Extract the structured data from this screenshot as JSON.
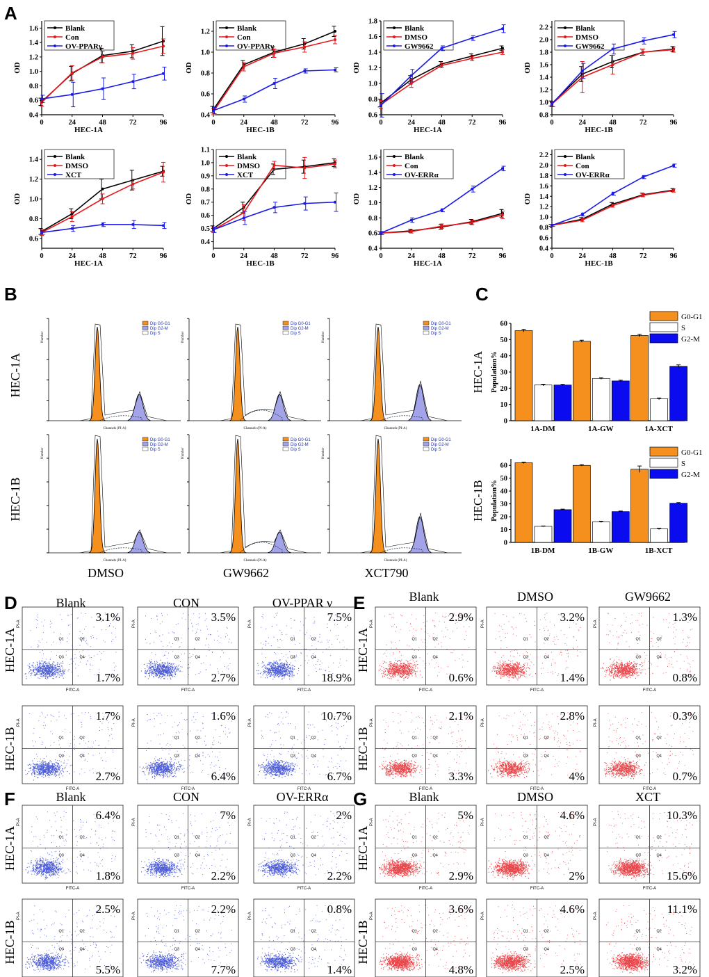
{
  "panel_labels": {
    "A": "A",
    "B": "B",
    "C": "C",
    "D": "D",
    "E": "E",
    "F": "F",
    "G": "G"
  },
  "colors": {
    "black": "#000000",
    "red": "#e8161b",
    "blue": "#1a1ae6",
    "orange": "#f5901e",
    "lilac": "#a3a3ea",
    "bar_blue": "#0b0bf0",
    "dot_blue": "#2d3fcf",
    "dot_red": "#e4262a"
  },
  "chart_data": [
    {
      "id": "a1",
      "type": "line",
      "ylabel": "OD",
      "xlabel": "HEC-1A",
      "x": [
        0,
        24,
        48,
        72,
        96
      ],
      "ylim": [
        0.4,
        1.7
      ],
      "yticks": [
        "0.4",
        "0.6",
        "0.8",
        "1.0",
        "1.2",
        "1.4",
        "1.6"
      ],
      "series": [
        {
          "name": "Blank",
          "color": "black",
          "values": [
            0.58,
            0.97,
            1.22,
            1.28,
            1.42
          ],
          "err": [
            0.05,
            0.1,
            0.1,
            0.09,
            0.2
          ]
        },
        {
          "name": "Con",
          "color": "red",
          "values": [
            0.57,
            0.98,
            1.2,
            1.25,
            1.35
          ],
          "err": [
            0.05,
            0.1,
            0.08,
            0.08,
            0.1
          ]
        },
        {
          "name": "OV-PPARγ",
          "color": "blue",
          "values": [
            0.62,
            0.68,
            0.76,
            0.86,
            0.97
          ],
          "err": [
            0.05,
            0.17,
            0.15,
            0.1,
            0.09
          ]
        }
      ]
    },
    {
      "id": "a2",
      "type": "line",
      "ylabel": "OD",
      "xlabel": "HEC-1B",
      "x": [
        0,
        24,
        48,
        72,
        96
      ],
      "ylim": [
        0.4,
        1.3
      ],
      "yticks": [
        "0.4",
        "0.6",
        "0.8",
        "1.0",
        "1.2"
      ],
      "series": [
        {
          "name": "Blank",
          "color": "black",
          "values": [
            0.45,
            0.88,
            1.0,
            1.08,
            1.2
          ],
          "err": [
            0.03,
            0.04,
            0.05,
            0.05,
            0.05
          ]
        },
        {
          "name": "Con",
          "color": "red",
          "values": [
            0.43,
            0.86,
            0.99,
            1.05,
            1.12
          ],
          "err": [
            0.03,
            0.04,
            0.04,
            0.05,
            0.04
          ]
        },
        {
          "name": "OV-PPARγ",
          "color": "blue",
          "values": [
            0.44,
            0.55,
            0.7,
            0.82,
            0.83
          ],
          "err": [
            0.03,
            0.03,
            0.05,
            0.02,
            0.02
          ]
        }
      ]
    },
    {
      "id": "a3",
      "type": "line",
      "ylabel": "OD",
      "xlabel": "HEC-1A",
      "x": [
        0,
        24,
        48,
        72,
        96
      ],
      "ylim": [
        0.6,
        1.8
      ],
      "yticks": [
        "0.6",
        "0.8",
        "1.0",
        "1.2",
        "1.4",
        "1.6",
        "1.8"
      ],
      "series": [
        {
          "name": "Blank",
          "color": "black",
          "values": [
            0.75,
            1.05,
            1.25,
            1.35,
            1.45
          ],
          "err": [
            0.05,
            0.05,
            0.03,
            0.03,
            0.03
          ]
        },
        {
          "name": "DMSO",
          "color": "red",
          "values": [
            0.73,
            1.0,
            1.23,
            1.32,
            1.4
          ],
          "err": [
            0.05,
            0.05,
            0.03,
            0.03,
            0.03
          ]
        },
        {
          "name": "GW9662",
          "color": "blue",
          "values": [
            0.72,
            1.1,
            1.45,
            1.58,
            1.7
          ],
          "err": [
            0.15,
            0.08,
            0.03,
            0.03,
            0.05
          ]
        }
      ]
    },
    {
      "id": "a4",
      "type": "line",
      "ylabel": "OD",
      "xlabel": "HEC-1B",
      "x": [
        0,
        24,
        48,
        72,
        96
      ],
      "ylim": [
        0.8,
        2.3
      ],
      "yticks": [
        "0.8",
        "1.0",
        "1.2",
        "1.4",
        "1.6",
        "1.8",
        "2.0",
        "2.2"
      ],
      "series": [
        {
          "name": "Blank",
          "color": "black",
          "values": [
            0.98,
            1.45,
            1.65,
            1.8,
            1.85
          ],
          "err": [
            0.04,
            0.12,
            0.1,
            0.05,
            0.04
          ]
        },
        {
          "name": "DMSO",
          "color": "red",
          "values": [
            0.97,
            1.4,
            1.6,
            1.8,
            1.84
          ],
          "err": [
            0.04,
            0.25,
            0.15,
            0.05,
            0.04
          ]
        },
        {
          "name": "GW9662",
          "color": "blue",
          "values": [
            0.97,
            1.5,
            1.85,
            1.98,
            2.08
          ],
          "err": [
            0.04,
            0.12,
            0.08,
            0.05,
            0.05
          ]
        }
      ]
    },
    {
      "id": "a5",
      "type": "line",
      "ylabel": "OD",
      "xlabel": "HEC-1A",
      "x": [
        0,
        24,
        48,
        72,
        96
      ],
      "ylim": [
        0.5,
        1.5
      ],
      "yticks": [
        "0.6",
        "0.8",
        "1.0",
        "1.2",
        "1.4"
      ],
      "series": [
        {
          "name": "Blank",
          "color": "black",
          "values": [
            0.67,
            0.85,
            1.1,
            1.19,
            1.28
          ],
          "err": [
            0.03,
            0.05,
            0.1,
            0.1,
            0.05
          ]
        },
        {
          "name": "DMSO",
          "color": "red",
          "values": [
            0.66,
            0.82,
            1.0,
            1.15,
            1.27
          ],
          "err": [
            0.03,
            0.05,
            0.05,
            0.05,
            0.1
          ]
        },
        {
          "name": "XCT",
          "color": "blue",
          "values": [
            0.66,
            0.7,
            0.74,
            0.74,
            0.73
          ],
          "err": [
            0.02,
            0.03,
            0.02,
            0.04,
            0.03
          ]
        }
      ]
    },
    {
      "id": "a6",
      "type": "line",
      "ylabel": "OD",
      "xlabel": "HEC-1B",
      "x": [
        0,
        24,
        48,
        72,
        96
      ],
      "ylim": [
        0.35,
        1.1
      ],
      "yticks": [
        "0.4",
        "0.5",
        "0.6",
        "0.7",
        "0.8",
        "0.9",
        "1.0",
        "1.1"
      ],
      "series": [
        {
          "name": "Blank",
          "color": "black",
          "values": [
            0.5,
            0.66,
            0.95,
            0.97,
            1.0
          ],
          "err": [
            0.02,
            0.04,
            0.04,
            0.05,
            0.03
          ]
        },
        {
          "name": "DMSO",
          "color": "red",
          "values": [
            0.49,
            0.62,
            0.98,
            0.96,
            0.99
          ],
          "err": [
            0.02,
            0.06,
            0.03,
            0.08,
            0.03
          ]
        },
        {
          "name": "XCT",
          "color": "blue",
          "values": [
            0.49,
            0.58,
            0.66,
            0.69,
            0.7
          ],
          "err": [
            0.02,
            0.05,
            0.04,
            0.05,
            0.07
          ]
        }
      ]
    },
    {
      "id": "a7",
      "type": "line",
      "ylabel": "OD",
      "xlabel": "HEC-1A",
      "x": [
        0,
        24,
        48,
        72,
        96
      ],
      "ylim": [
        0.4,
        1.7
      ],
      "yticks": [
        "0.4",
        "0.6",
        "0.8",
        "1.0",
        "1.2",
        "1.4",
        "1.6"
      ],
      "series": [
        {
          "name": "Blank",
          "color": "black",
          "values": [
            0.6,
            0.63,
            0.68,
            0.75,
            0.86
          ],
          "err": [
            0.02,
            0.02,
            0.03,
            0.03,
            0.05
          ]
        },
        {
          "name": "Con",
          "color": "red",
          "values": [
            0.6,
            0.62,
            0.69,
            0.74,
            0.84
          ],
          "err": [
            0.02,
            0.02,
            0.03,
            0.03,
            0.05
          ]
        },
        {
          "name": "OV-ERRα",
          "color": "blue",
          "values": [
            0.6,
            0.77,
            0.9,
            1.18,
            1.45
          ],
          "err": [
            0.02,
            0.03,
            0.02,
            0.04,
            0.03
          ]
        }
      ]
    },
    {
      "id": "a8",
      "type": "line",
      "ylabel": "OD",
      "xlabel": "HEC-1B",
      "x": [
        0,
        24,
        48,
        72,
        96
      ],
      "ylim": [
        0.4,
        2.3
      ],
      "yticks": [
        "0.4",
        "0.6",
        "0.8",
        "1.0",
        "1.2",
        "1.4",
        "1.6",
        "1.8",
        "2.0",
        "2.2"
      ],
      "series": [
        {
          "name": "Blank",
          "color": "black",
          "values": [
            0.84,
            0.96,
            1.25,
            1.43,
            1.52
          ],
          "err": [
            0.02,
            0.03,
            0.03,
            0.03,
            0.03
          ]
        },
        {
          "name": "Con",
          "color": "red",
          "values": [
            0.84,
            0.94,
            1.22,
            1.42,
            1.51
          ],
          "err": [
            0.02,
            0.03,
            0.03,
            0.03,
            0.03
          ]
        },
        {
          "name": "OV-ERRα",
          "color": "blue",
          "values": [
            0.84,
            1.05,
            1.45,
            1.77,
            1.99
          ],
          "err": [
            0.02,
            0.03,
            0.03,
            0.03,
            0.03
          ]
        }
      ]
    },
    {
      "id": "c1",
      "type": "bar",
      "ylabel": "Population%",
      "rowlabel": "HEC-1A",
      "ylim": [
        0,
        60
      ],
      "yticks": [
        "0",
        "10",
        "20",
        "30",
        "40",
        "50",
        "60"
      ],
      "categories": [
        "1A-DM",
        "1A-GW",
        "1A-XCT"
      ],
      "series": [
        {
          "name": "G0-G1",
          "values": [
            55.5,
            49,
            52.5
          ],
          "err": [
            0.8,
            0.6,
            0.8
          ]
        },
        {
          "name": "S",
          "values": [
            22,
            26,
            13.5
          ],
          "err": [
            0.5,
            0.5,
            0.5
          ]
        },
        {
          "name": "G2-M",
          "values": [
            22,
            24.5,
            33.5
          ],
          "err": [
            0.4,
            0.5,
            0.9
          ]
        }
      ]
    },
    {
      "id": "c2",
      "type": "bar",
      "ylabel": "Population%",
      "rowlabel": "HEC-1B",
      "ylim": [
        0,
        65
      ],
      "yticks": [
        "0",
        "10",
        "20",
        "30",
        "40",
        "50",
        "60"
      ],
      "categories": [
        "1B-DM",
        "1B-GW",
        "1B-XCT"
      ],
      "series": [
        {
          "name": "G0-G1",
          "values": [
            62,
            60,
            57
          ],
          "err": [
            0.5,
            0.5,
            2.5
          ]
        },
        {
          "name": "S",
          "values": [
            12.5,
            16,
            10.5
          ],
          "err": [
            0.3,
            0.5,
            0.5
          ]
        },
        {
          "name": "G2-M",
          "values": [
            25.5,
            24,
            30.5
          ],
          "err": [
            0.4,
            0.4,
            0.5
          ]
        }
      ]
    }
  ],
  "legend_b": {
    "g0g1": "Dip G0-G1",
    "g2m": "Dip G2-M",
    "s": "Dip S"
  },
  "panel_b": {
    "rows": [
      "HEC-1A",
      "HEC-1B"
    ],
    "cols": [
      "DMSO",
      "GW9662",
      "XCT790"
    ],
    "xaxis": "Channels (PI-A)",
    "yaxis": "Number"
  },
  "flow_axes": {
    "x": "FITC-A",
    "y": "PI-A",
    "q1": "Q1",
    "q2": "Q2",
    "q3": "Q3",
    "q4": "Q4"
  },
  "panel_d": {
    "cols": [
      "Blank",
      "CON",
      "OV-PPAR γ"
    ],
    "rows": [
      "HEC-1A",
      "HEC-1B"
    ],
    "values": [
      [
        "3.1%",
        "1.7%"
      ],
      [
        "3.5%",
        "2.7%"
      ],
      [
        "7.5%",
        "18.9%"
      ],
      [
        "1.7%",
        "2.7%"
      ],
      [
        "1.6%",
        "6.4%"
      ],
      [
        "10.7%",
        "6.7%"
      ]
    ]
  },
  "panel_e": {
    "cols": [
      "Blank",
      "DMSO",
      "GW9662"
    ],
    "rows": [
      "HEC-1A",
      "HEC-1B"
    ],
    "values": [
      [
        "2.9%",
        "0.6%"
      ],
      [
        "3.2%",
        "1.4%"
      ],
      [
        "1.3%",
        "0.8%"
      ],
      [
        "2.1%",
        "3.3%"
      ],
      [
        "2.8%",
        "4%"
      ],
      [
        "0.3%",
        "0.7%"
      ]
    ]
  },
  "panel_f": {
    "cols": [
      "Blank",
      "CON",
      "OV-ERRα"
    ],
    "rows": [
      "HEC-1A",
      "HEC-1B"
    ],
    "values": [
      [
        "6.4%",
        "1.8%"
      ],
      [
        "7%",
        "2.2%"
      ],
      [
        "2%",
        "2.2%"
      ],
      [
        "2.5%",
        "5.5%"
      ],
      [
        "2.2%",
        "7.7%"
      ],
      [
        "0.8%",
        "1.4%"
      ]
    ]
  },
  "panel_g": {
    "cols": [
      "Blank",
      "DMSO",
      "XCT"
    ],
    "rows": [
      "HEC-1A",
      "HEC-1B"
    ],
    "values": [
      [
        "5%",
        "2.9%"
      ],
      [
        "4.6%",
        "2%"
      ],
      [
        "10.3%",
        "15.6%"
      ],
      [
        "3.6%",
        "4.8%"
      ],
      [
        "4.6%",
        "2.5%"
      ],
      [
        "11.1%",
        "3.2%"
      ]
    ]
  }
}
